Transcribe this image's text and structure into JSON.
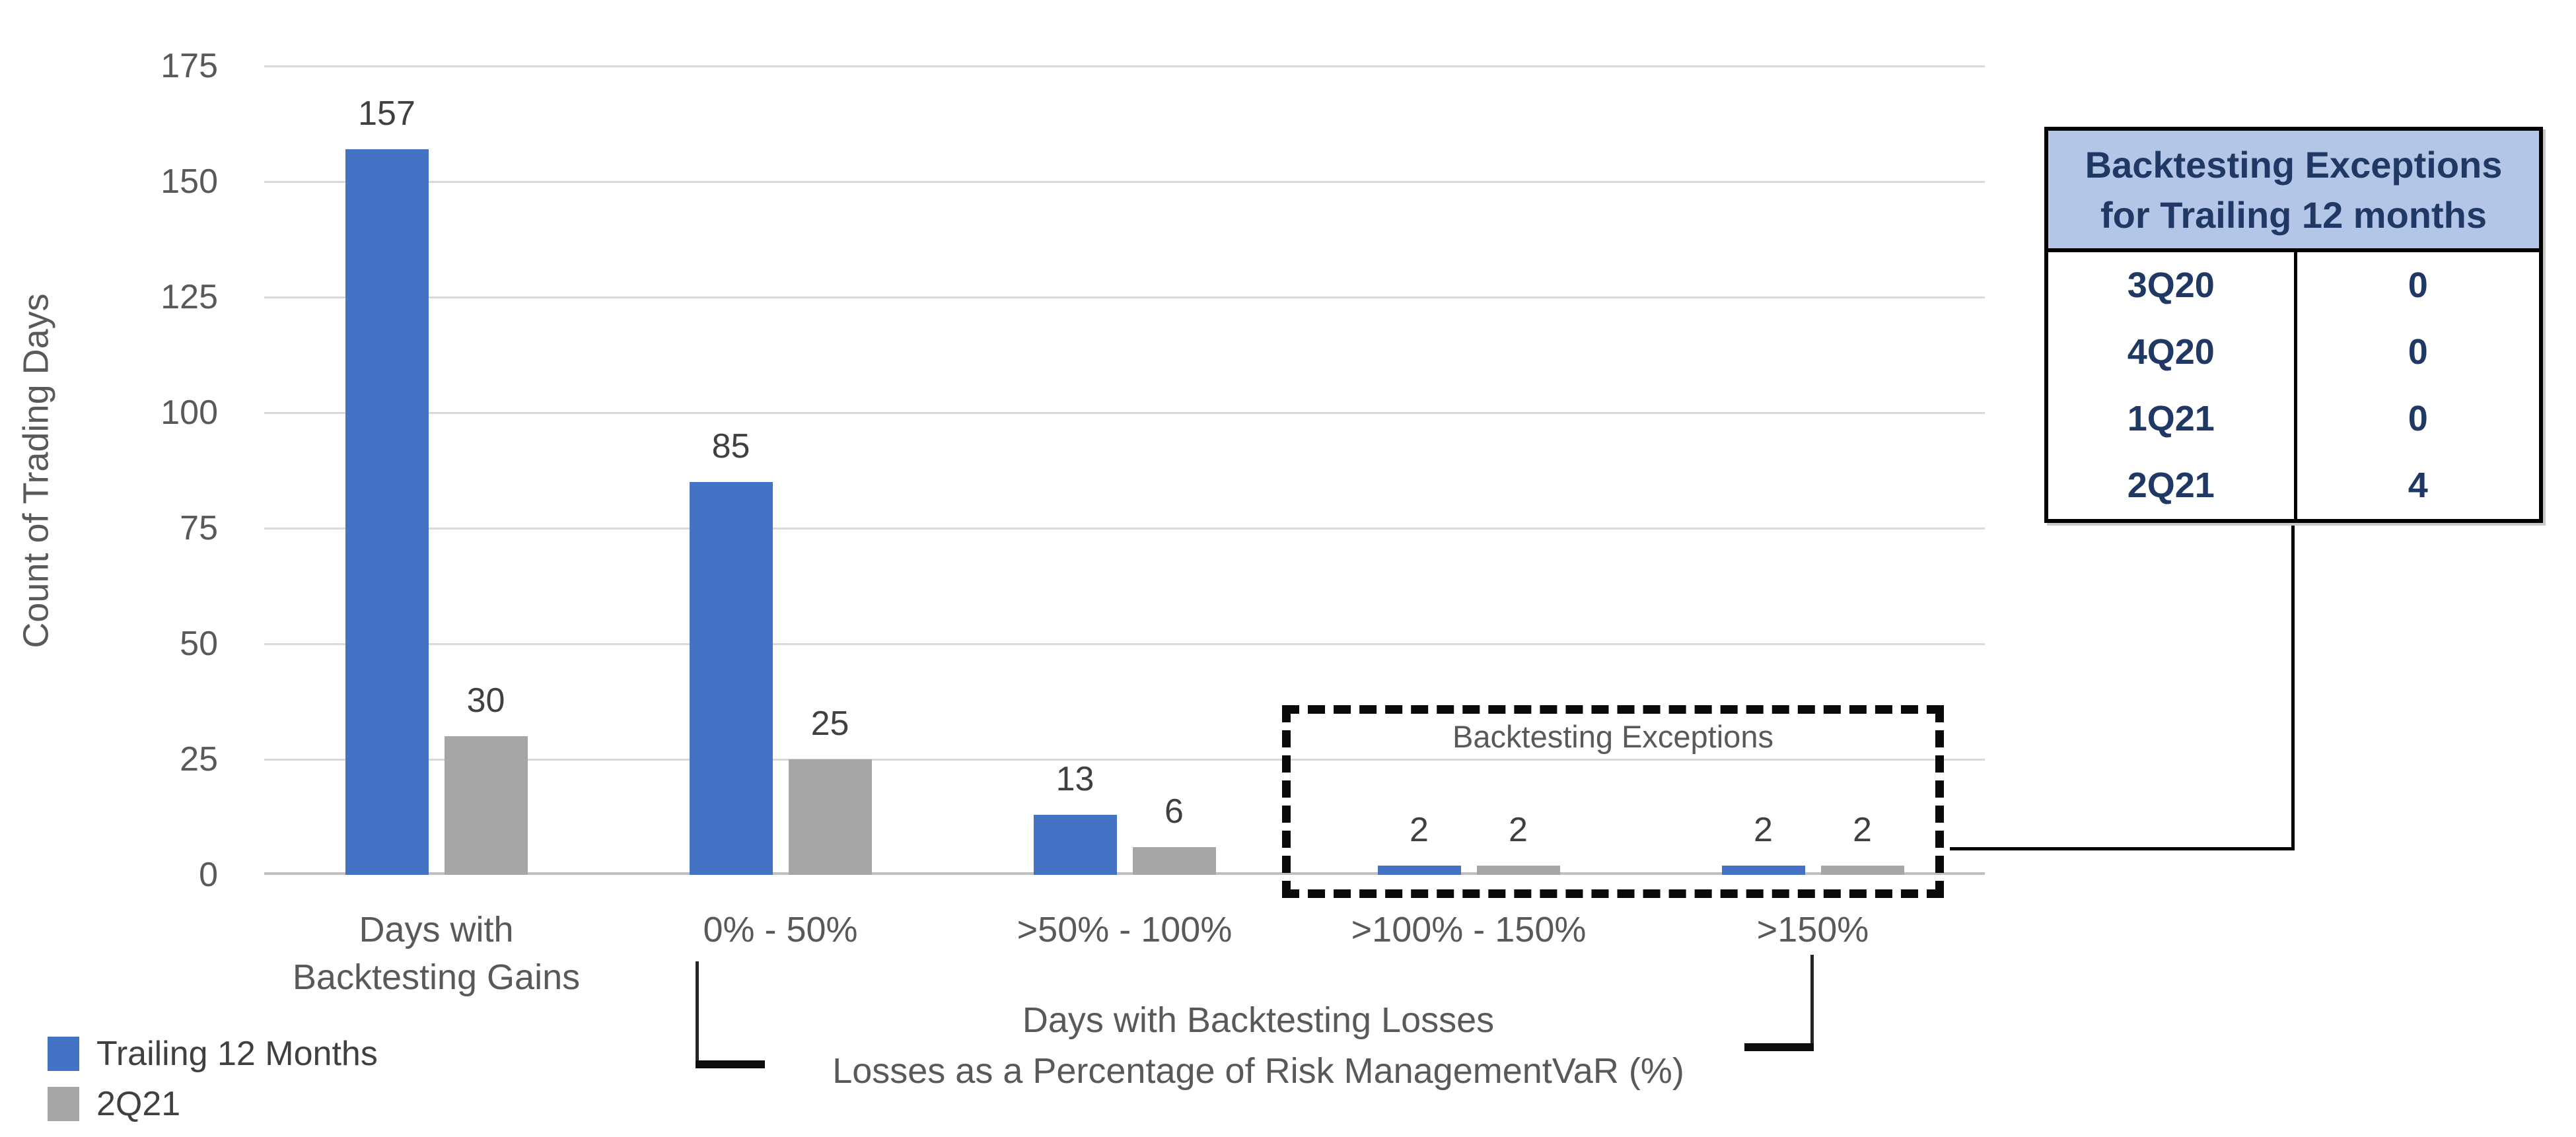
{
  "figure": {
    "background": "#ffffff"
  },
  "colors": {
    "series_blue": "#4472C4",
    "series_gray": "#A6A6A6",
    "gridline": "#D9D9D9",
    "axis_line": "#BFBFBF",
    "value_label_text": "#404040",
    "axis_text": "#595959",
    "table_header_bg": "#B4C6E7",
    "table_text": "#1F3864",
    "connector": "#000000"
  },
  "chart_data": {
    "type": "bar",
    "title": "",
    "ylabel": "Count of Trading Days",
    "categories": [
      "Days with\nBacktesting Gains",
      "0% - 50%",
      ">50% - 100%",
      ">100% - 150%",
      ">150%"
    ],
    "series": [
      {
        "name": "Trailing 12 Months",
        "color": "#4472C4",
        "values": [
          157,
          85,
          13,
          2,
          2
        ]
      },
      {
        "name": "2Q21",
        "color": "#A6A6A6",
        "values": [
          30,
          25,
          6,
          2,
          2
        ]
      }
    ],
    "ylim": [
      0,
      175
    ],
    "yticks": [
      "0",
      "25",
      "50",
      "75",
      "100",
      "125",
      "150",
      "175"
    ],
    "grid": true,
    "legend_position": "bottom-left",
    "xaxis_title_line1": "Days with Backtesting Losses",
    "xaxis_title_line2": "Losses as a Percentage of Risk ManagementVaR (%)",
    "annotation_box_label": "Backtesting Exceptions"
  },
  "side_table": {
    "title_line1": "Backtesting Exceptions",
    "title_line2": "for Trailing 12 months",
    "rows": [
      {
        "quarter": "3Q20",
        "exceptions": "0"
      },
      {
        "quarter": "4Q20",
        "exceptions": "0"
      },
      {
        "quarter": "1Q21",
        "exceptions": "0"
      },
      {
        "quarter": "2Q21",
        "exceptions": "4"
      }
    ]
  }
}
